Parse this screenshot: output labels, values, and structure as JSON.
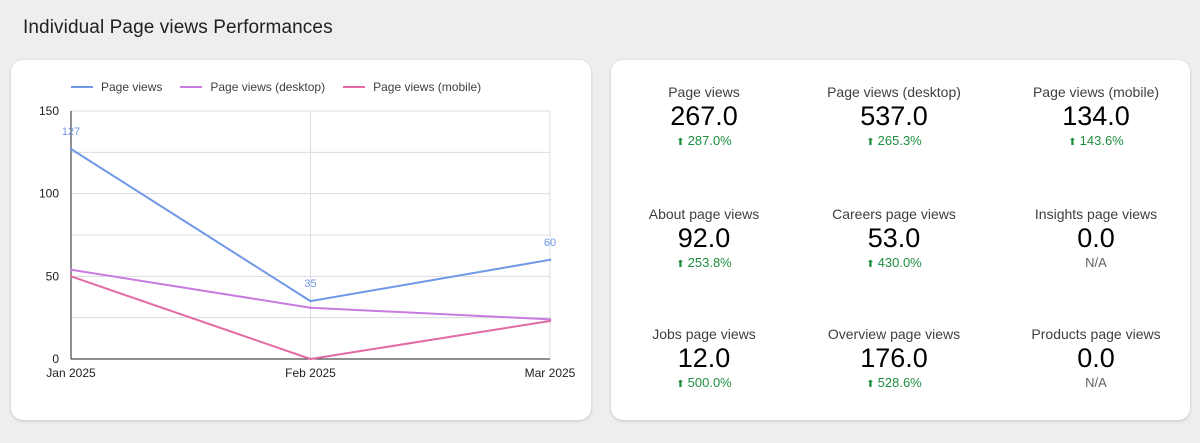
{
  "page": {
    "title": "Individual Page views Performances"
  },
  "chart_data": {
    "type": "line",
    "categories": [
      "Jan 2025",
      "Feb 2025",
      "Mar 2025"
    ],
    "ylim": [
      0,
      150
    ],
    "yticks": [
      0,
      50,
      100,
      150
    ],
    "grid": true,
    "legend_position": "top-left",
    "series": [
      {
        "name": "Page views",
        "color": "#6f98e6",
        "values": [
          127,
          35,
          60
        ],
        "labels": [
          "127",
          "35",
          "60"
        ]
      },
      {
        "name": "Page views (desktop)",
        "color": "#c87be0",
        "values": [
          54,
          31,
          24
        ],
        "labels": []
      },
      {
        "name": "Page views (mobile)",
        "color": "#e36aa3",
        "values": [
          50,
          0,
          23
        ],
        "labels": []
      }
    ]
  },
  "kpis": [
    {
      "label": "Page views",
      "value": "267.0",
      "delta": "287.0%",
      "trend": "up"
    },
    {
      "label": "Page views (desktop)",
      "value": "537.0",
      "delta": "265.3%",
      "trend": "up"
    },
    {
      "label": "Page views (mobile)",
      "value": "134.0",
      "delta": "143.6%",
      "trend": "up"
    },
    {
      "label": "About page views",
      "value": "92.0",
      "delta": "253.8%",
      "trend": "up"
    },
    {
      "label": "Careers page views",
      "value": "53.0",
      "delta": "430.0%",
      "trend": "up"
    },
    {
      "label": "Insights page views",
      "value": "0.0",
      "delta": "N/A",
      "trend": "none"
    },
    {
      "label": "Jobs page views",
      "value": "12.0",
      "delta": "500.0%",
      "trend": "up"
    },
    {
      "label": "Overview page views",
      "value": "176.0",
      "delta": "528.6%",
      "trend": "up"
    },
    {
      "label": "Products page views",
      "value": "0.0",
      "delta": "N/A",
      "trend": "none"
    }
  ],
  "colors": {
    "positive": "#1e8e3e",
    "neutral": "#5f6368"
  },
  "icons": {
    "up": "arrow-up-icon"
  }
}
